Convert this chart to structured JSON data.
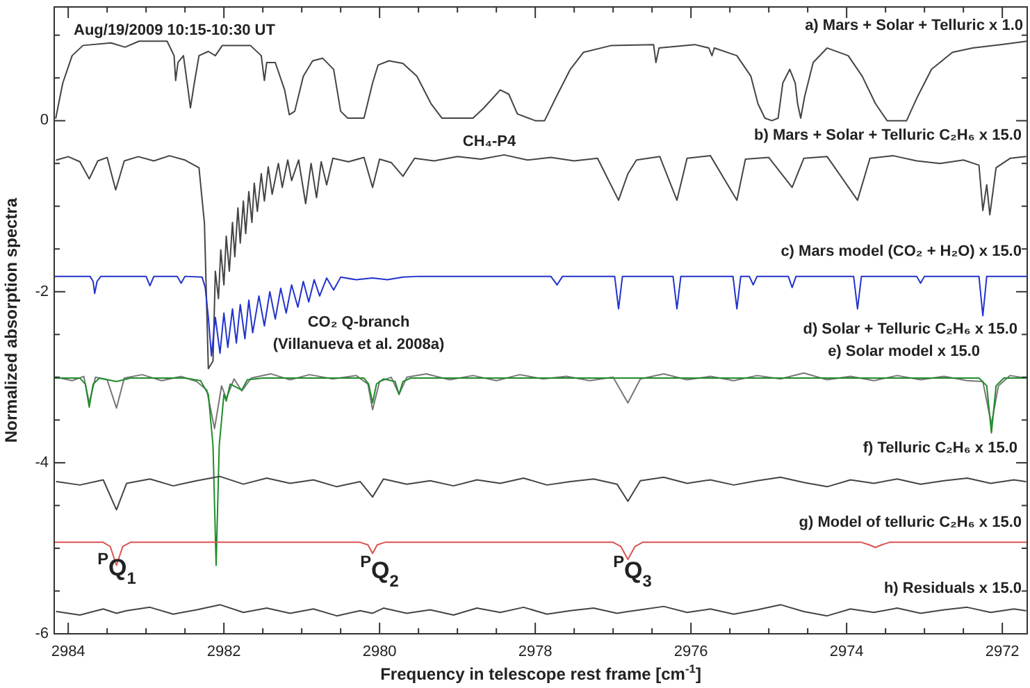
{
  "chart_data": {
    "type": "line",
    "xlabel": "Frequency in telescope rest frame [cm$^{-1}$]",
    "ylabel": "Normalized absorption spectra",
    "xlim": [
      2984.18,
      2971.68
    ],
    "ylim": [
      -6,
      1.33
    ],
    "xticks": [
      2984,
      {
        "value": 2983.5,
        "label": null
      },
      {
        "value": 2983,
        "label": null
      },
      {
        "value": 2982.5,
        "label": null
      },
      2982,
      {
        "value": 2981.5,
        "label": null
      },
      {
        "value": 2981,
        "label": null
      },
      {
        "value": 2980.5,
        "label": null
      },
      2980,
      {
        "value": 2979.5,
        "label": null
      },
      {
        "value": 2979,
        "label": null
      },
      {
        "value": 2978.5,
        "label": null
      },
      2978,
      {
        "value": 2977.5,
        "label": null
      },
      {
        "value": 2977,
        "label": null
      },
      {
        "value": 2976.5,
        "label": null
      },
      2976,
      {
        "value": 2975.5,
        "label": null
      },
      {
        "value": 2975,
        "label": null
      },
      {
        "value": 2974.5,
        "label": null
      },
      2974,
      {
        "value": 2973.5,
        "label": null
      },
      {
        "value": 2973,
        "label": null
      },
      {
        "value": 2972.5,
        "label": null
      },
      2972
    ],
    "yticks": [
      {
        "value": 1,
        "label": null
      },
      {
        "value": 0.5,
        "label": null
      },
      0,
      {
        "value": -0.5,
        "label": null
      },
      {
        "value": -1,
        "label": null
      },
      {
        "value": -1.5,
        "label": null
      },
      -2,
      {
        "value": -2.5,
        "label": null
      },
      {
        "value": -3,
        "label": null
      },
      {
        "value": -3.5,
        "label": null
      },
      -4,
      {
        "value": -4.5,
        "label": null
      },
      {
        "value": -5,
        "label": null
      },
      {
        "value": -5.5,
        "label": null
      },
      -6
    ],
    "grid": false,
    "marker": "none",
    "line_style": "solid",
    "annotations": [
      "Aug/19/2009 10:15-10:30 UT",
      "CH₄-P4",
      "CO₂ Q-branch",
      "(Villanueva et al. 2008a)",
      "$^{P}$Q$_{1}$",
      "$^{P}$Q$_{2}$",
      "$^{P}$Q$_{3}$"
    ],
    "series": [
      {
        "name": "a) Mars + Solar + Telluric x 1.0",
        "color": "#444444",
        "x": [
          2984.16,
          2984.07,
          2983.95,
          2983.81,
          2983.45,
          2983.27,
          2983.09,
          2982.73,
          2982.64,
          2982.62,
          2982.59,
          2982.52,
          2982.46,
          2982.43,
          2982.38,
          2982.32,
          2982.2,
          2982.11,
          2982.02,
          2981.66,
          2981.52,
          2981.48,
          2981.45,
          2981.34,
          2981.22,
          2981.16,
          2981.09,
          2980.98,
          2980.86,
          2980.73,
          2980.59,
          2980.5,
          2980.41,
          2980.2,
          2980.09,
          2980.02,
          2979.88,
          2979.7,
          2979.52,
          2979.34,
          2979.2,
          2978.8,
          2978.66,
          2978.45,
          2978.34,
          2978.23,
          2978.0,
          2977.88,
          2977.73,
          2977.55,
          2977.38,
          2977.02,
          2976.48,
          2976.45,
          2976.41,
          2975.95,
          2975.77,
          2975.73,
          2975.7,
          2975.41,
          2975.23,
          2975.14,
          2975.05,
          2974.96,
          2974.88,
          2974.82,
          2974.73,
          2974.66,
          2974.63,
          2974.59,
          2974.54,
          2974.43,
          2974.25,
          2973.98,
          2973.8,
          2973.63,
          2973.48,
          2973.23,
          2973.09,
          2972.91,
          2972.64,
          2972.38,
          2972.02,
          2971.68
        ],
        "values": [
          0.03,
          0.44,
          0.76,
          0.88,
          0.91,
          0.86,
          0.93,
          0.93,
          0.76,
          0.47,
          0.68,
          0.76,
          0.36,
          0.15,
          0.44,
          0.76,
          0.81,
          0.76,
          0.88,
          0.88,
          0.76,
          0.47,
          0.68,
          0.68,
          0.36,
          0.07,
          0.11,
          0.52,
          0.7,
          0.73,
          0.6,
          0.11,
          0.03,
          0.03,
          0.44,
          0.65,
          0.7,
          0.67,
          0.52,
          0.2,
          0.03,
          0.03,
          0.15,
          0.36,
          0.31,
          0.08,
          0,
          0,
          0.28,
          0.6,
          0.8,
          0.88,
          0.89,
          0.68,
          0.85,
          0.89,
          0.85,
          0.76,
          0.85,
          0.76,
          0.52,
          0.2,
          0.03,
          0,
          0.03,
          0.44,
          0.6,
          0.44,
          0.2,
          0.03,
          0.28,
          0.68,
          0.85,
          0.76,
          0.52,
          0.2,
          0,
          0,
          0.28,
          0.6,
          0.8,
          0.85,
          0.89,
          0.93
        ]
      },
      {
        "name": "b) Mars + Solar + Telluric C₂H₆ x 15.0",
        "color": "#444444",
        "x": [
          2984.15,
          2984.0,
          2983.85,
          2983.73,
          2983.62,
          2983.5,
          2983.39,
          2983.28,
          2983.1,
          2982.9,
          2982.7,
          2982.5,
          2982.32,
          2982.25,
          2982.2,
          2982.14,
          2982.11,
          2982.07,
          2982.04,
          2982.0,
          2981.97,
          2981.93,
          2981.89,
          2981.86,
          2981.82,
          2981.79,
          2981.75,
          2981.72,
          2981.68,
          2981.64,
          2981.61,
          2981.57,
          2981.52,
          2981.48,
          2981.43,
          2981.38,
          2981.3,
          2981.25,
          2981.18,
          2981.13,
          2981.04,
          2980.95,
          2980.88,
          2980.81,
          2980.75,
          2980.68,
          2980.6,
          2980.4,
          2980.2,
          2980.09,
          2980.0,
          2979.85,
          2979.7,
          2979.55,
          2979.3,
          2979.0,
          2978.7,
          2978.4,
          2978.1,
          2977.8,
          2977.5,
          2977.2,
          2976.93,
          2976.81,
          2976.7,
          2976.4,
          2976.18,
          2976.05,
          2975.75,
          2975.41,
          2975.3,
          2975.0,
          2974.7,
          2974.55,
          2974.25,
          2973.86,
          2973.7,
          2973.4,
          2973.1,
          2972.8,
          2972.5,
          2972.3,
          2972.25,
          2972.2,
          2972.16,
          2972.08,
          2971.9,
          2971.7
        ],
        "values": [
          -0.46,
          -0.42,
          -0.48,
          -0.68,
          -0.47,
          -0.43,
          -0.81,
          -0.47,
          -0.42,
          -0.47,
          -0.41,
          -0.46,
          -0.55,
          -1.2,
          -2.9,
          -2.81,
          -1.76,
          -2.08,
          -1.51,
          -1.92,
          -1.35,
          -1.76,
          -1.19,
          -1.59,
          -1.02,
          -1.43,
          -0.94,
          -1.32,
          -0.83,
          -1.19,
          -0.73,
          -1.06,
          -0.62,
          -0.94,
          -0.54,
          -0.86,
          -0.5,
          -0.78,
          -0.46,
          -0.7,
          -0.46,
          -0.97,
          -0.5,
          -0.9,
          -0.48,
          -0.75,
          -0.44,
          -0.48,
          -0.43,
          -0.78,
          -0.45,
          -0.49,
          -0.65,
          -0.44,
          -0.47,
          -0.42,
          -0.45,
          -0.4,
          -0.46,
          -0.43,
          -0.47,
          -0.44,
          -0.93,
          -0.62,
          -0.46,
          -0.42,
          -0.93,
          -0.44,
          -0.41,
          -0.93,
          -0.45,
          -0.43,
          -0.78,
          -0.44,
          -0.42,
          -0.93,
          -0.44,
          -0.41,
          -0.47,
          -0.5,
          -0.46,
          -0.52,
          -1.05,
          -0.75,
          -1.1,
          -0.55,
          -0.44,
          -0.42
        ]
      },
      {
        "name": "c) Mars model (CO₂ + H₂O) x 15.0",
        "color": "#2233cc",
        "x": [
          2984.18,
          2983.72,
          2983.68,
          2983.66,
          2983.63,
          2983.58,
          2983.0,
          2982.95,
          2982.9,
          2982.6,
          2982.55,
          2982.5,
          2982.28,
          2982.24,
          2982.2,
          2982.16,
          2982.11,
          2982.05,
          2982.0,
          2981.95,
          2981.89,
          2981.84,
          2981.79,
          2981.73,
          2981.68,
          2981.63,
          2981.55,
          2981.48,
          2981.41,
          2981.34,
          2981.27,
          2981.2,
          2981.13,
          2981.05,
          2980.98,
          2980.91,
          2980.84,
          2980.77,
          2980.68,
          2980.59,
          2980.5,
          2980.3,
          2980.09,
          2979.9,
          2979.7,
          2979.5,
          2978.8,
          2978.6,
          2977.8,
          2977.72,
          2977.65,
          2976.98,
          2976.93,
          2976.88,
          2976.23,
          2976.18,
          2976.13,
          2975.46,
          2975.41,
          2975.36,
          2975.25,
          2975.2,
          2975.15,
          2974.75,
          2974.7,
          2974.65,
          2973.91,
          2973.86,
          2973.81,
          2973.1,
          2973.05,
          2973.0,
          2972.3,
          2972.25,
          2972.2,
          2971.68
        ],
        "values": [
          -1.82,
          -1.82,
          -1.88,
          -2.02,
          -1.88,
          -1.82,
          -1.82,
          -1.93,
          -1.82,
          -1.82,
          -1.9,
          -1.82,
          -1.83,
          -1.95,
          -2.3,
          -2.75,
          -2.3,
          -2.72,
          -2.25,
          -2.65,
          -2.2,
          -2.6,
          -2.15,
          -2.55,
          -2.1,
          -2.48,
          -2.05,
          -2.4,
          -2.0,
          -2.32,
          -1.96,
          -2.25,
          -1.92,
          -2.18,
          -1.88,
          -2.12,
          -1.86,
          -2.05,
          -1.84,
          -1.98,
          -1.83,
          -1.86,
          -1.84,
          -1.86,
          -1.83,
          -1.82,
          -1.82,
          -1.82,
          -1.82,
          -1.92,
          -1.82,
          -1.82,
          -2.2,
          -1.82,
          -1.82,
          -2.2,
          -1.82,
          -1.82,
          -2.2,
          -1.82,
          -1.82,
          -1.92,
          -1.82,
          -1.82,
          -1.95,
          -1.82,
          -1.82,
          -2.2,
          -1.82,
          -1.82,
          -1.9,
          -1.82,
          -1.82,
          -2.28,
          -1.82,
          -1.82
        ]
      },
      {
        "name": "d) Solar + Telluric C₂H₆ x 15.0",
        "color": "#777777",
        "x": [
          2984.15,
          2983.95,
          2983.8,
          2983.73,
          2983.65,
          2983.5,
          2983.38,
          2983.28,
          2983.05,
          2982.8,
          2982.55,
          2982.35,
          2982.22,
          2982.12,
          2982.03,
          2981.97,
          2981.87,
          2981.77,
          2981.65,
          2981.4,
          2981.15,
          2980.9,
          2980.6,
          2980.3,
          2980.15,
          2980.09,
          2980.0,
          2979.85,
          2979.75,
          2979.65,
          2979.4,
          2979.1,
          2978.8,
          2978.5,
          2978.2,
          2977.9,
          2977.6,
          2977.3,
          2977.0,
          2976.81,
          2976.65,
          2976.35,
          2976.05,
          2975.75,
          2975.45,
          2975.15,
          2974.85,
          2974.55,
          2974.25,
          2973.95,
          2973.65,
          2973.35,
          2973.05,
          2972.75,
          2972.45,
          2972.25,
          2972.14,
          2972.05,
          2971.9,
          2971.7
        ],
        "values": [
          -3.0,
          -3.04,
          -2.99,
          -3.3,
          -3.0,
          -3.03,
          -3.36,
          -3.01,
          -2.97,
          -3.04,
          -2.99,
          -3.05,
          -3.15,
          -3.6,
          -3.1,
          -3.25,
          -3.02,
          -3.16,
          -3.01,
          -2.96,
          -3.03,
          -2.97,
          -3.02,
          -2.98,
          -3.08,
          -3.38,
          -3.05,
          -3.0,
          -3.2,
          -3.0,
          -2.96,
          -3.03,
          -2.98,
          -3.04,
          -2.97,
          -3.02,
          -2.99,
          -3.04,
          -3.0,
          -3.3,
          -3.02,
          -2.96,
          -3.03,
          -2.99,
          -3.04,
          -2.98,
          -3.02,
          -2.95,
          -3.03,
          -2.99,
          -3.04,
          -2.98,
          -3.03,
          -2.99,
          -3.04,
          -3.05,
          -3.55,
          -3.1,
          -2.98,
          -3.01
        ]
      },
      {
        "name": "e) Solar model x 15.0",
        "color": "#1e8c2a",
        "x": [
          2984.18,
          2983.85,
          2983.78,
          2983.73,
          2983.68,
          2983.6,
          2983.38,
          2983.2,
          2982.5,
          2982.3,
          2982.2,
          2982.14,
          2982.1,
          2982.06,
          2982.0,
          2981.97,
          2981.92,
          2981.77,
          2981.7,
          2981.5,
          2980.2,
          2980.14,
          2980.09,
          2980.04,
          2979.95,
          2979.8,
          2979.75,
          2979.7,
          2979.6,
          2972.3,
          2972.2,
          2972.14,
          2972.08,
          2971.98,
          2971.68
        ],
        "values": [
          -3.01,
          -3.01,
          -3.08,
          -3.35,
          -3.08,
          -3.01,
          -3.05,
          -3.01,
          -3.01,
          -3.04,
          -3.2,
          -3.8,
          -5.2,
          -3.8,
          -3.2,
          -3.28,
          -3.08,
          -3.15,
          -3.03,
          -3.01,
          -3.01,
          -3.08,
          -3.3,
          -3.08,
          -3.02,
          -3.05,
          -3.2,
          -3.05,
          -3.01,
          -3.01,
          -3.1,
          -3.65,
          -3.1,
          -3.01,
          -3.01
        ]
      },
      {
        "name": "f) Telluric C₂H₆ x 15.0",
        "color": "#444444",
        "x": [
          2984.15,
          2983.85,
          2983.55,
          2983.38,
          2983.25,
          2982.95,
          2982.65,
          2982.35,
          2982.05,
          2981.75,
          2981.45,
          2981.15,
          2980.85,
          2980.55,
          2980.25,
          2980.09,
          2979.95,
          2979.65,
          2979.35,
          2979.05,
          2978.75,
          2978.45,
          2978.15,
          2977.85,
          2977.55,
          2977.25,
          2976.95,
          2976.81,
          2976.65,
          2976.35,
          2976.05,
          2975.75,
          2975.45,
          2975.15,
          2974.85,
          2974.55,
          2974.25,
          2973.95,
          2973.65,
          2973.35,
          2973.05,
          2972.75,
          2972.45,
          2972.15,
          2971.85,
          2971.7
        ],
        "values": [
          -4.22,
          -4.26,
          -4.2,
          -4.55,
          -4.24,
          -4.19,
          -4.27,
          -4.21,
          -4.16,
          -4.25,
          -4.18,
          -4.24,
          -4.2,
          -4.28,
          -4.22,
          -4.4,
          -4.19,
          -4.25,
          -4.21,
          -4.27,
          -4.2,
          -4.24,
          -4.18,
          -4.26,
          -4.22,
          -4.19,
          -4.25,
          -4.45,
          -4.21,
          -4.17,
          -4.24,
          -4.2,
          -4.26,
          -4.21,
          -4.17,
          -4.23,
          -4.28,
          -4.2,
          -4.24,
          -4.19,
          -4.25,
          -4.21,
          -4.18,
          -4.24,
          -4.2,
          -4.22
        ]
      },
      {
        "name": "g) Model of telluric C₂H₆ x 15.0",
        "color": "#d9534f",
        "x": [
          2984.18,
          2983.55,
          2983.46,
          2983.38,
          2983.3,
          2983.2,
          2980.25,
          2980.15,
          2980.09,
          2980.03,
          2979.93,
          2977.0,
          2976.9,
          2976.81,
          2976.72,
          2976.62,
          2973.81,
          2973.71,
          2973.63,
          2973.55,
          2973.45,
          2971.68
        ],
        "values": [
          -4.93,
          -4.93,
          -4.98,
          -5.2,
          -4.98,
          -4.93,
          -4.93,
          -4.96,
          -5.06,
          -4.96,
          -4.93,
          -4.93,
          -4.98,
          -5.13,
          -4.98,
          -4.93,
          -4.93,
          -4.96,
          -4.99,
          -4.96,
          -4.93,
          -4.93
        ]
      },
      {
        "name": "h) Residuals x 15.0",
        "color": "#444444",
        "x": [
          2984.15,
          2983.85,
          2983.55,
          2983.38,
          2983.25,
          2982.95,
          2982.65,
          2982.35,
          2982.05,
          2981.75,
          2981.45,
          2981.15,
          2980.85,
          2980.55,
          2980.25,
          2980.09,
          2979.95,
          2979.65,
          2979.35,
          2979.05,
          2978.75,
          2978.45,
          2978.15,
          2977.85,
          2977.55,
          2977.25,
          2976.95,
          2976.81,
          2976.65,
          2976.35,
          2976.05,
          2975.75,
          2975.45,
          2975.15,
          2974.85,
          2974.55,
          2974.25,
          2973.95,
          2973.65,
          2973.35,
          2973.05,
          2972.75,
          2972.45,
          2972.15,
          2971.85,
          2971.7
        ],
        "values": [
          -5.74,
          -5.78,
          -5.71,
          -5.76,
          -5.73,
          -5.69,
          -5.77,
          -5.72,
          -5.66,
          -5.75,
          -5.7,
          -5.76,
          -5.71,
          -5.79,
          -5.73,
          -5.76,
          -5.7,
          -5.76,
          -5.72,
          -5.78,
          -5.7,
          -5.75,
          -5.69,
          -5.77,
          -5.73,
          -5.7,
          -5.76,
          -5.74,
          -5.72,
          -5.68,
          -5.75,
          -5.71,
          -5.77,
          -5.72,
          -5.66,
          -5.74,
          -5.79,
          -5.71,
          -5.75,
          -5.7,
          -5.76,
          -5.72,
          -5.69,
          -5.75,
          -5.71,
          -5.73
        ]
      }
    ]
  }
}
